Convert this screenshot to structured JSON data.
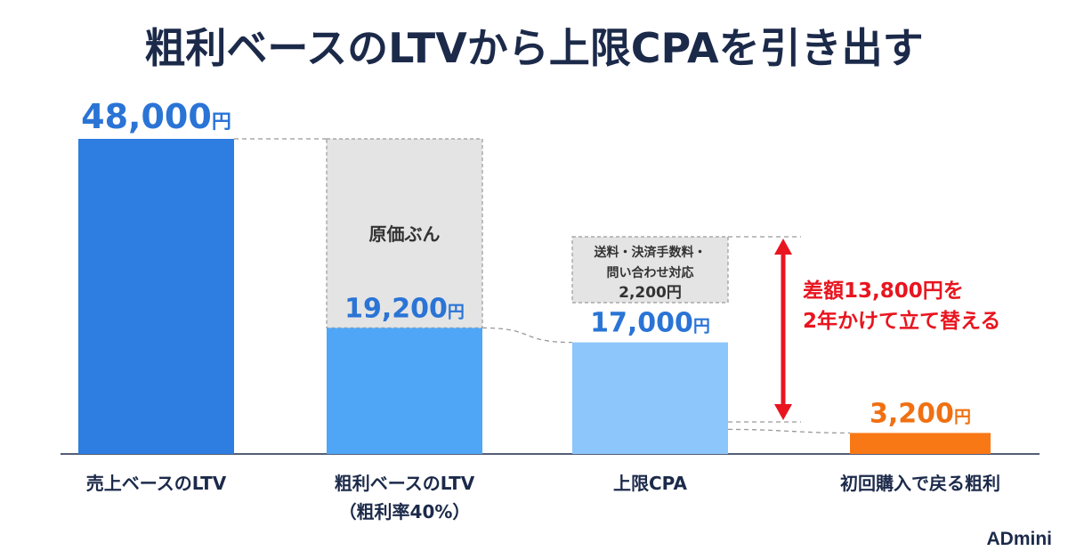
{
  "chart_data": {
    "type": "bar",
    "title": "粗利ベースのLTVから上限CPAを引き出す",
    "categories": [
      "売上ベースのLTV",
      "粗利ベースのLTV\n（粗利率40%）",
      "上限CPA",
      "初回購入で戻る粗利"
    ],
    "values": [
      48000,
      19200,
      17000,
      3200
    ],
    "value_labels": [
      "48,000",
      "19,200",
      "17,000",
      "3,200"
    ],
    "value_unit": "円",
    "bar_colors": [
      "#2e7de0",
      "#4fa6f6",
      "#8cc6fb",
      "#f87816"
    ],
    "value_label_colors": [
      "#2a74d6",
      "#2a74d6",
      "#2a74d6",
      "#f07012"
    ],
    "removed_segments": [
      {
        "bar_index": 1,
        "from": 19200,
        "to": 48000,
        "label": "原価ぶん"
      },
      {
        "bar_index": 2,
        "from": 17000,
        "to": 19200,
        "label": "送料・決済手数料・\n問い合わせ対応\n2,200円"
      }
    ],
    "difference": {
      "from": 3200,
      "to": 17000,
      "label": "差額13,800円を\n2年かけて立て替える",
      "color": "#e8151f"
    },
    "ylim": [
      0,
      48000
    ],
    "grid": false,
    "legend": "none",
    "brand": "ADmini"
  }
}
